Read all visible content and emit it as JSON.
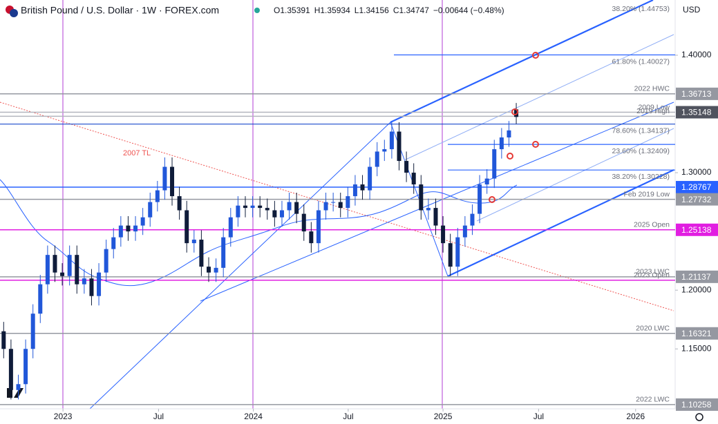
{
  "chart_data": {
    "type": "candlestick",
    "title": "British Pound / U.S. Dollar · 1W · FOREX.com",
    "header_ohlc": [
      "O1.35391",
      "H1.35934",
      "L1.34156",
      "C1.34747",
      "−0.00644 (−0.48%)"
    ],
    "currency": "USD",
    "annotation": "2007 TL",
    "up_color": "#2157d9",
    "down_color": "#0f1c3a",
    "xlim": [
      0,
      184.4
    ],
    "ylim": [
      1.099,
      1.447
    ],
    "xticks": [
      {
        "value": 17.2,
        "label": "2023"
      },
      {
        "value": 43.3,
        "label": "Jul"
      },
      {
        "value": 69.2,
        "label": "2024"
      },
      {
        "value": 95.1,
        "label": "Jul"
      },
      {
        "value": 121.0,
        "label": "2025"
      },
      {
        "value": 147.1,
        "label": "Jul"
      },
      {
        "value": 173.6,
        "label": "2026"
      }
    ],
    "yticks": [
      {
        "value": 1.4,
        "label": "1.40000"
      },
      {
        "value": 1.3,
        "label": "1.30000"
      },
      {
        "value": 1.2,
        "label": "1.20000"
      },
      {
        "value": 1.15,
        "label": "1.15000"
      }
    ],
    "x": [
      1,
      3,
      5,
      7,
      9,
      11,
      13,
      15,
      17,
      19,
      21,
      23,
      25,
      27,
      29,
      31,
      33,
      35,
      37,
      39,
      41,
      43,
      45,
      47,
      49,
      51,
      53,
      55,
      57,
      59,
      61,
      63,
      65,
      67,
      69,
      71,
      73,
      75,
      77,
      79,
      81,
      83,
      85,
      87,
      89,
      91,
      93,
      95,
      97,
      99,
      101,
      103,
      105,
      107,
      109,
      111,
      113,
      115,
      117,
      119,
      121,
      123,
      125,
      127,
      129,
      131,
      133,
      135,
      137,
      139,
      141
    ],
    "open": [
      1.165,
      1.15,
      1.115,
      1.12,
      1.15,
      1.18,
      1.205,
      1.23,
      1.215,
      1.212,
      1.23,
      1.205,
      1.21,
      1.195,
      1.215,
      1.235,
      1.245,
      1.255,
      1.25,
      1.255,
      1.262,
      1.275,
      1.285,
      1.305,
      1.28,
      1.268,
      1.24,
      1.243,
      1.22,
      1.215,
      1.219,
      1.245,
      1.262,
      1.272,
      1.27,
      1.272,
      1.27,
      1.268,
      1.262,
      1.268,
      1.275,
      1.265,
      1.25,
      1.24,
      1.268,
      1.275,
      1.275,
      1.27,
      1.28,
      1.29,
      1.285,
      1.305,
      1.318,
      1.32,
      1.335,
      1.31,
      1.3,
      1.29,
      1.268,
      1.27,
      1.255,
      1.24,
      1.22,
      1.245,
      1.255,
      1.265,
      1.29,
      1.295,
      1.32,
      1.33,
      1.35391
    ],
    "high": [
      1.173,
      1.158,
      1.128,
      1.158,
      1.188,
      1.213,
      1.238,
      1.238,
      1.223,
      1.238,
      1.238,
      1.218,
      1.218,
      1.223,
      1.243,
      1.253,
      1.263,
      1.263,
      1.263,
      1.27,
      1.283,
      1.293,
      1.313,
      1.313,
      1.288,
      1.276,
      1.251,
      1.251,
      1.228,
      1.227,
      1.253,
      1.27,
      1.28,
      1.28,
      1.28,
      1.28,
      1.278,
      1.276,
      1.276,
      1.283,
      1.283,
      1.273,
      1.258,
      1.276,
      1.283,
      1.283,
      1.283,
      1.288,
      1.298,
      1.298,
      1.313,
      1.326,
      1.328,
      1.343,
      1.343,
      1.318,
      1.308,
      1.298,
      1.278,
      1.278,
      1.263,
      1.248,
      1.253,
      1.263,
      1.273,
      1.298,
      1.303,
      1.328,
      1.338,
      1.344,
      1.35934
    ],
    "low": [
      1.142,
      1.107,
      1.107,
      1.112,
      1.142,
      1.172,
      1.197,
      1.207,
      1.204,
      1.204,
      1.197,
      1.197,
      1.187,
      1.187,
      1.207,
      1.227,
      1.237,
      1.242,
      1.242,
      1.247,
      1.254,
      1.267,
      1.277,
      1.272,
      1.26,
      1.232,
      1.232,
      1.212,
      1.207,
      1.207,
      1.211,
      1.237,
      1.254,
      1.262,
      1.262,
      1.262,
      1.26,
      1.254,
      1.254,
      1.26,
      1.257,
      1.242,
      1.232,
      1.232,
      1.26,
      1.267,
      1.262,
      1.262,
      1.272,
      1.277,
      1.277,
      1.297,
      1.31,
      1.312,
      1.302,
      1.292,
      1.282,
      1.26,
      1.26,
      1.247,
      1.232,
      1.212,
      1.212,
      1.237,
      1.247,
      1.257,
      1.282,
      1.287,
      1.312,
      1.322,
      1.34156
    ],
    "close": [
      1.15,
      1.115,
      1.12,
      1.15,
      1.18,
      1.205,
      1.23,
      1.215,
      1.212,
      1.23,
      1.205,
      1.21,
      1.195,
      1.215,
      1.235,
      1.245,
      1.255,
      1.25,
      1.255,
      1.262,
      1.275,
      1.285,
      1.305,
      1.28,
      1.268,
      1.24,
      1.243,
      1.22,
      1.215,
      1.219,
      1.245,
      1.262,
      1.272,
      1.27,
      1.272,
      1.27,
      1.268,
      1.262,
      1.268,
      1.275,
      1.265,
      1.25,
      1.24,
      1.268,
      1.275,
      1.275,
      1.27,
      1.28,
      1.29,
      1.285,
      1.305,
      1.318,
      1.32,
      1.335,
      1.31,
      1.3,
      1.29,
      1.268,
      1.27,
      1.255,
      1.24,
      1.22,
      1.245,
      1.255,
      1.265,
      1.29,
      1.295,
      1.32,
      1.33,
      1.336,
      1.34747
    ],
    "levels": [
      {
        "value": 1.36713,
        "label": "2022 HWC",
        "tag": 1.36713,
        "color": "#9598a1"
      },
      {
        "value": 1.35148,
        "label": "2009 Low",
        "tag": 1.35148,
        "color": "#b2b5be"
      },
      {
        "value": 1.348,
        "label": "2019 High",
        "color": "#b2b5be"
      },
      {
        "value": 1.28767,
        "tag": 1.28767,
        "color": "#2962ff"
      },
      {
        "value": 1.27732,
        "label": "Feb 2019 Low",
        "tag": 1.27732,
        "color": "#9598a1"
      },
      {
        "value": 1.25138,
        "label": "2025 Open",
        "tag": 1.25138,
        "color": "#e11ee1"
      },
      {
        "value": 1.21137,
        "label": "2023 LWC",
        "tag": 1.21137,
        "color": "#9598a1"
      },
      {
        "value": 1.2085,
        "label": "2023 Open",
        "color": "#e11ee1"
      },
      {
        "value": 1.16321,
        "label": "2020 LWC",
        "tag": 1.16321,
        "color": "#9598a1"
      },
      {
        "value": 1.10258,
        "label": "2022 LWC",
        "tag": 1.10258,
        "color": "#9598a1"
      }
    ],
    "fib_levels": [
      {
        "value": 1.44753,
        "label": "38.20% (1.44753)"
      },
      {
        "value": 1.40027,
        "label": "61.80% (1.40027)"
      },
      {
        "value": 1.34137,
        "label": "78.60% (1.34137)"
      },
      {
        "value": 1.32409,
        "label": "23.60% (1.32409)"
      },
      {
        "value": 1.30228,
        "label": "38.20% (1.30228)"
      }
    ]
  }
}
